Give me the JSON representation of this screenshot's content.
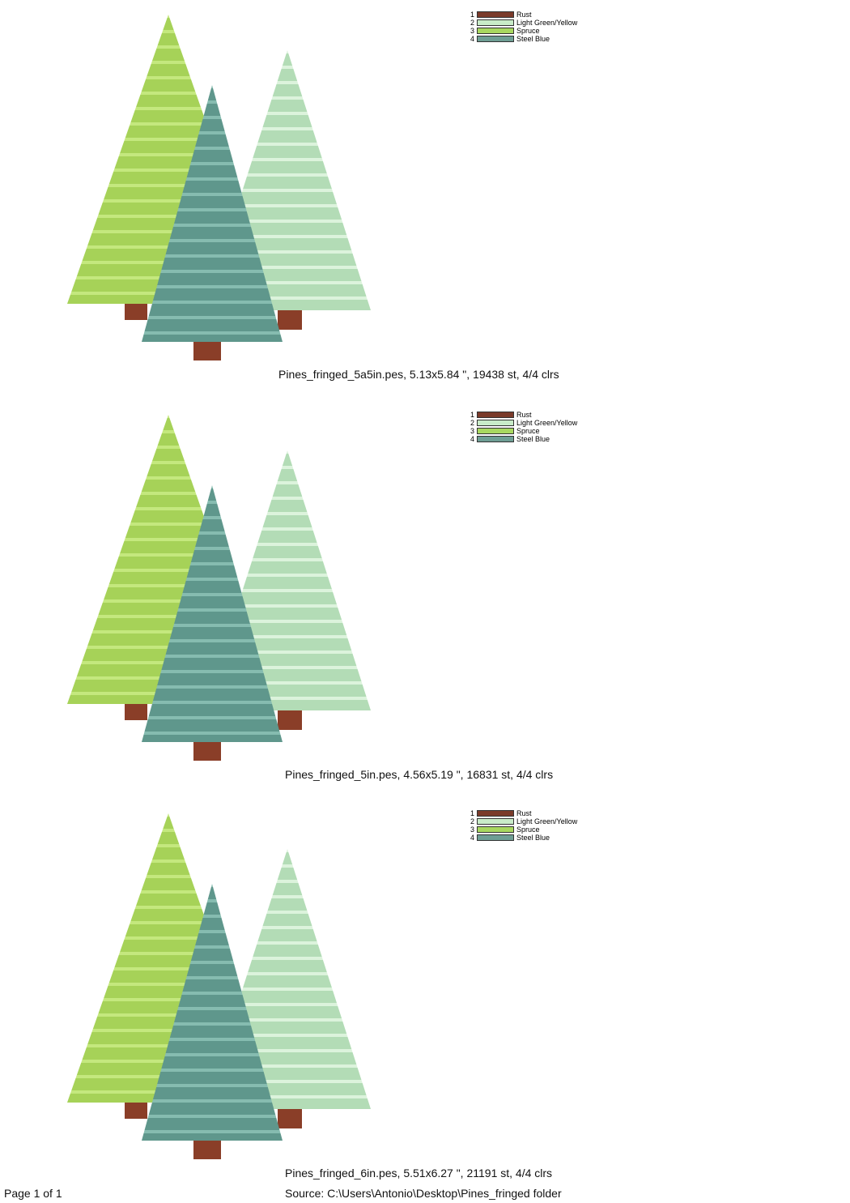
{
  "legend_colors": [
    {
      "number": "1",
      "name": "Rust",
      "color": "#7a3a2a"
    },
    {
      "number": "2",
      "name": "Light Green/Yellow",
      "color": "#c9ecc9"
    },
    {
      "number": "3",
      "name": "Spruce",
      "color": "#a8d860"
    },
    {
      "number": "4",
      "name": "Steel Blue",
      "color": "#6e9e94"
    }
  ],
  "designs": [
    {
      "caption": "Pines_fringed_5a5in.pes, 5.13x5.84 \", 19438 st, 4/4 clrs"
    },
    {
      "caption": "Pines_fringed_5in.pes, 4.56x5.19 \", 16831 st, 4/4 clrs"
    },
    {
      "caption": "Pines_fringed_6in.pes, 5.51x6.27 \", 21191 st, 4/4 clrs"
    }
  ],
  "footer": {
    "page": "Page 1 of 1",
    "source": "Source: C:\\Users\\Antonio\\Desktop\\Pines_fringed folder"
  },
  "tree_colors": {
    "spruce": "#a6d258",
    "spruce_light": "#c4e87e",
    "steel": "#5f978c",
    "steel_light": "#86bcb0",
    "light": "#b3dcb6",
    "light_light": "#dcf3dc",
    "rust": "#8a3e28"
  }
}
